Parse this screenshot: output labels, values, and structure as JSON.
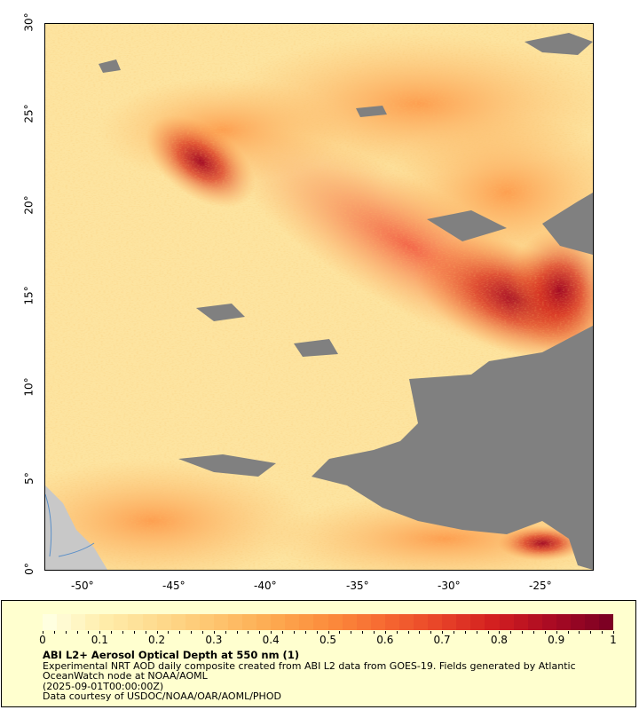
{
  "map": {
    "lon_ticks": [
      "-50°",
      "-45°",
      "-40°",
      "-35°",
      "-30°",
      "-25°"
    ],
    "lat_ticks": [
      "0°",
      "5°",
      "10°",
      "15°",
      "20°",
      "25°",
      "30°"
    ],
    "lon_range": [
      -52,
      -22
    ],
    "lat_range": [
      0,
      30
    ],
    "colors": {
      "no_data": "#808080",
      "land": "#c8c8c8",
      "aod_low": "#fff4c2",
      "aod_mid": "#fca552",
      "aod_high": "#c00d1e",
      "aod_max": "#800020"
    }
  },
  "legend": {
    "colorbar_ticks": [
      "0",
      "0.1",
      "0.2",
      "0.3",
      "0.4",
      "0.5",
      "0.6",
      "0.7",
      "0.8",
      "0.9",
      "1"
    ],
    "colorbar_range": [
      0,
      1
    ],
    "title": "ABI L2+ Aerosol Optical Depth at 550 nm (1)",
    "line1": "Experimental NRT AOD daily composite created from ABI L2 data from GOES-19. Fields generated by Atlantic",
    "line2": "OceanWatch node at NOAA/AOML",
    "line3": "(2025-09-01T00:00:00Z)",
    "line4": "Data courtesy of USDOC/NOAA/OAR/AOML/PHOD"
  }
}
